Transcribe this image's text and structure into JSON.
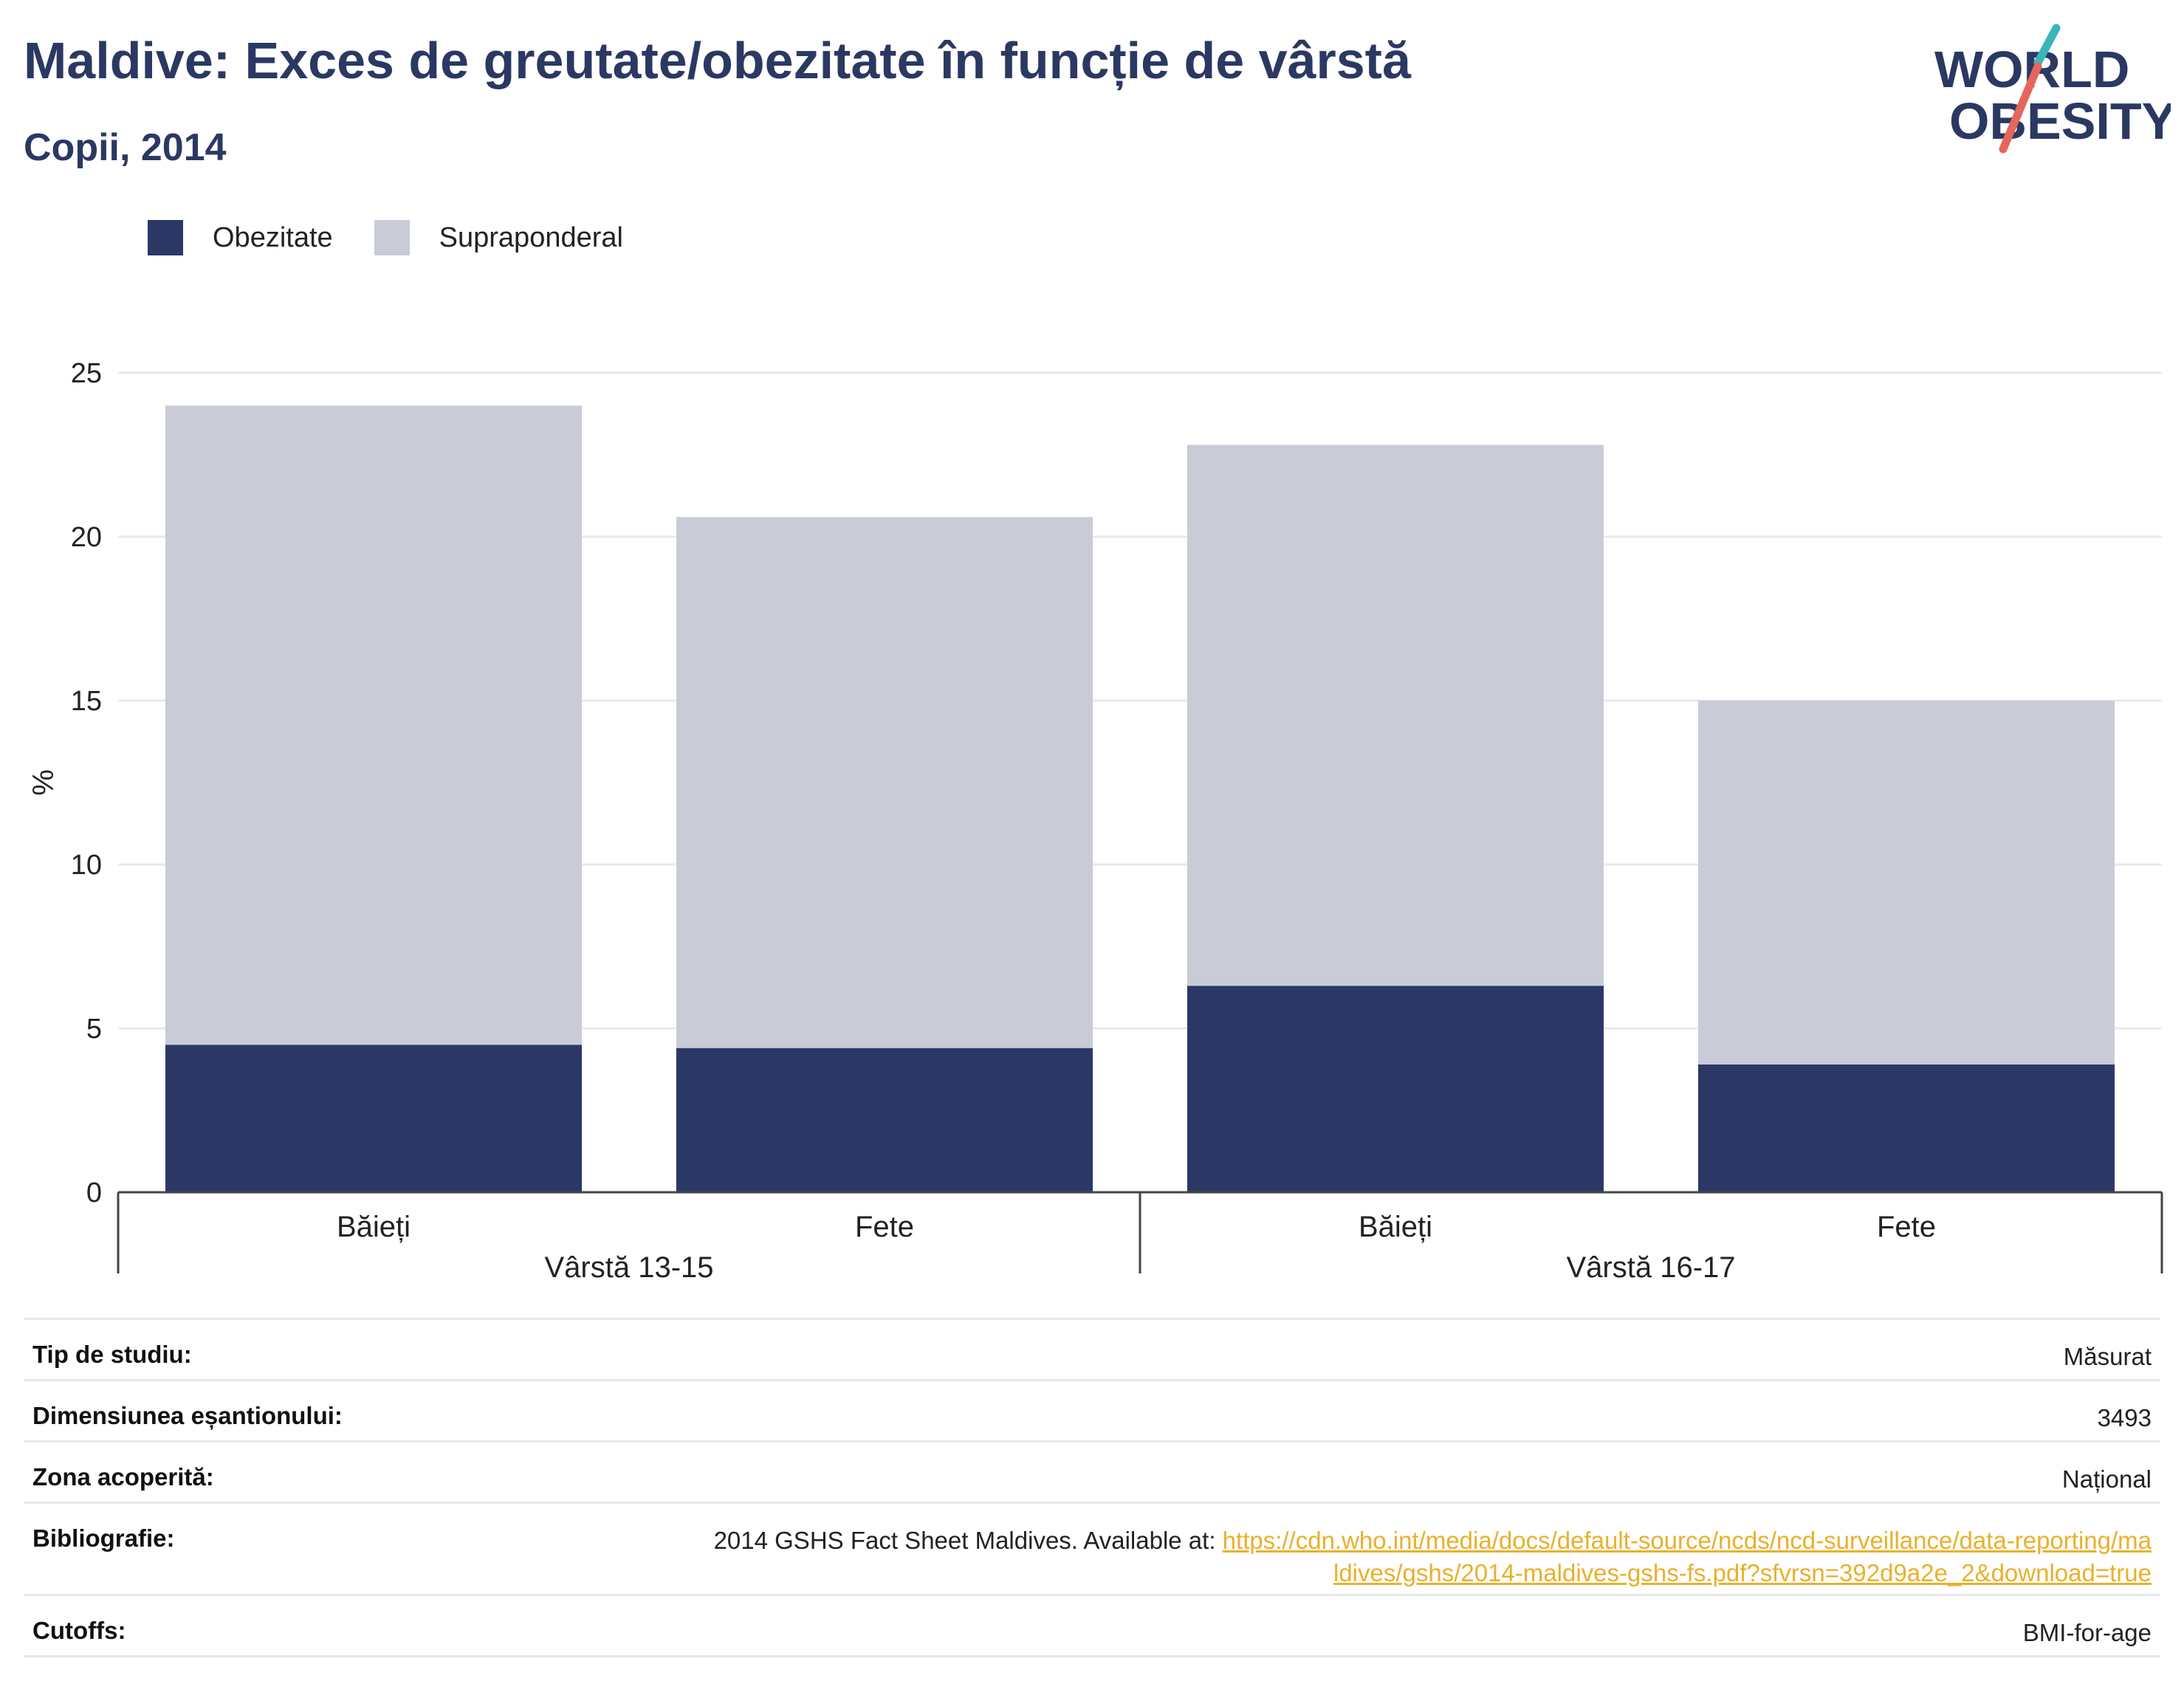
{
  "header": {
    "title": "Maldive: Exces de greutate/obezitate în funcție de vârstă",
    "subtitle": "Copii, 2014",
    "logo_line1": "WORLD",
    "logo_line2": "OBESITY"
  },
  "legend": {
    "items": [
      {
        "label": "Obezitate",
        "color": "#2b3765"
      },
      {
        "label": "Supraponderal",
        "color": "#c9cbd7"
      }
    ]
  },
  "chart_data": {
    "type": "bar",
    "stacked": true,
    "ylabel": "%",
    "ylim": [
      0,
      25
    ],
    "yticks": [
      0,
      5,
      10,
      15,
      20,
      25
    ],
    "grid": true,
    "legend_position": "top-left",
    "categories": [
      "Băieți",
      "Fete",
      "Băieți",
      "Fete"
    ],
    "groups": [
      {
        "label": "Vârstă 13-15",
        "span": [
          0,
          1
        ]
      },
      {
        "label": "Vârstă 16-17",
        "span": [
          2,
          3
        ]
      }
    ],
    "series": [
      {
        "name": "Obezitate",
        "color": "#2b3765",
        "values": [
          4.5,
          4.4,
          6.3,
          3.9
        ]
      },
      {
        "name": "Supraponderal",
        "color": "#c9cbd7",
        "values": [
          19.5,
          16.2,
          16.5,
          11.1
        ]
      }
    ]
  },
  "info": {
    "study_type_label": "Tip de studiu:",
    "study_type_value": "Măsurat",
    "sample_size_label": "Dimensiunea eșantionului:",
    "sample_size_value": "3493",
    "coverage_label": "Zona acoperită:",
    "coverage_value": "Național",
    "bibliography_label": "Bibliografie:",
    "bibliography_text": "2014 GSHS Fact Sheet Maldives. Available at: ",
    "bibliography_link": "https://cdn.who.int/media/docs/default-source/ncds/ncd-surveillance/data-reporting/maldives/gshs/2014-maldives-gshs-fs.pdf?sfvrsn=392d9a2e_2&download=true",
    "cutoffs_label": "Cutoffs:",
    "cutoffs_value": "BMI-for-age"
  }
}
